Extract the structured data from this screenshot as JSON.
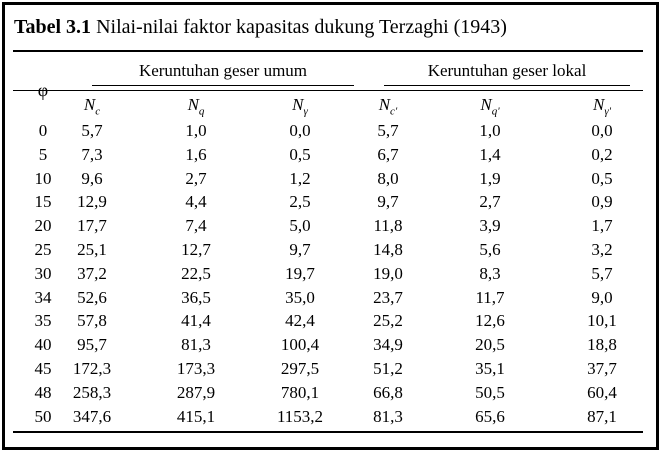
{
  "caption": {
    "label": "Tabel 3.1",
    "title": "Nilai-nilai faktor kapasitas dukung Terzaghi (1943)"
  },
  "table": {
    "phi_header": "φ",
    "group_headers": [
      "Keruntuhan geser umum",
      "Keruntuhan geser lokal"
    ],
    "columns": [
      {
        "symbol": "N",
        "sub": "c"
      },
      {
        "symbol": "N",
        "sub": "q"
      },
      {
        "symbol": "N",
        "sub": "γ"
      },
      {
        "symbol": "N",
        "sub": "c'"
      },
      {
        "symbol": "N",
        "sub": "q'"
      },
      {
        "symbol": "N",
        "sub": "γ'"
      }
    ],
    "rows": [
      [
        "0",
        "5,7",
        "1,0",
        "0,0",
        "5,7",
        "1,0",
        "0,0"
      ],
      [
        "5",
        "7,3",
        "1,6",
        "0,5",
        "6,7",
        "1,4",
        "0,2"
      ],
      [
        "10",
        "9,6",
        "2,7",
        "1,2",
        "8,0",
        "1,9",
        "0,5"
      ],
      [
        "15",
        "12,9",
        "4,4",
        "2,5",
        "9,7",
        "2,7",
        "0,9"
      ],
      [
        "20",
        "17,7",
        "7,4",
        "5,0",
        "11,8",
        "3,9",
        "1,7"
      ],
      [
        "25",
        "25,1",
        "12,7",
        "9,7",
        "14,8",
        "5,6",
        "3,2"
      ],
      [
        "30",
        "37,2",
        "22,5",
        "19,7",
        "19,0",
        "8,3",
        "5,7"
      ],
      [
        "34",
        "52,6",
        "36,5",
        "35,0",
        "23,7",
        "11,7",
        "9,0"
      ],
      [
        "35",
        "57,8",
        "41,4",
        "42,4",
        "25,2",
        "12,6",
        "10,1"
      ],
      [
        "40",
        "95,7",
        "81,3",
        "100,4",
        "34,9",
        "20,5",
        "18,8"
      ],
      [
        "45",
        "172,3",
        "173,3",
        "297,5",
        "51,2",
        "35,1",
        "37,7"
      ],
      [
        "48",
        "258,3",
        "287,9",
        "780,1",
        "66,8",
        "50,5",
        "60,4"
      ],
      [
        "50",
        "347,6",
        "415,1",
        "1153,2",
        "81,3",
        "65,6",
        "87,1"
      ]
    ]
  }
}
